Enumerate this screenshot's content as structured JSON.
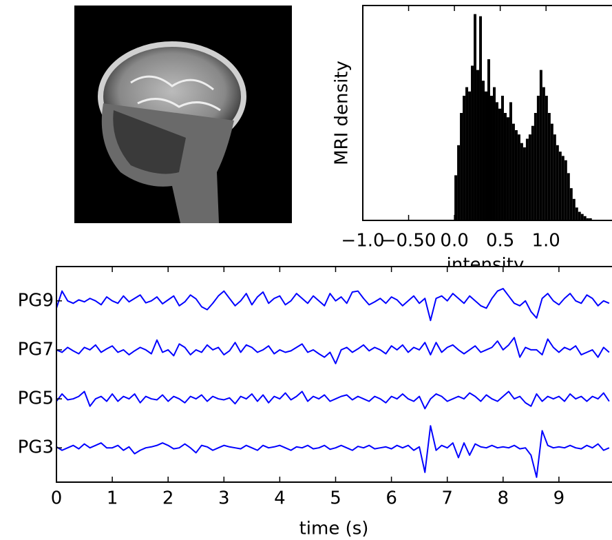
{
  "chart_data": [
    {
      "type": "histogram",
      "ylabel": "MRI density",
      "xlabel": "intensity",
      "color": "#000000",
      "bins": [
        0,
        0.03,
        0.06,
        0.09,
        0.12,
        0.15,
        0.18,
        0.21,
        0.24,
        0.27,
        0.3,
        0.33,
        0.36,
        0.39,
        0.42,
        0.45,
        0.48,
        0.51,
        0.54,
        0.57,
        0.6,
        0.63,
        0.66,
        0.69,
        0.72,
        0.75,
        0.78,
        0.81,
        0.84,
        0.87,
        0.9,
        0.93,
        0.96,
        0.99,
        1.02,
        1.05,
        1.08,
        1.11,
        1.14,
        1.17,
        1.2,
        1.23,
        1.26,
        1.29,
        1.32,
        1.35,
        1.38,
        1.41,
        1.44,
        1.47,
        1.5
      ],
      "counts": [
        21,
        35,
        50,
        58,
        62,
        60,
        72,
        96,
        70,
        95,
        65,
        60,
        75,
        58,
        62,
        55,
        52,
        58,
        50,
        48,
        55,
        45,
        42,
        40,
        36,
        34,
        38,
        40,
        44,
        50,
        58,
        70,
        62,
        58,
        50,
        45,
        40,
        35,
        32,
        30,
        28,
        22,
        15,
        10,
        6,
        4,
        3,
        2,
        1,
        1
      ],
      "xlim": [
        -1.0,
        1.75
      ],
      "ylim": [
        0,
        100
      ],
      "xticks": [
        {
          "value": -1.0,
          "label": "−1.0"
        },
        {
          "value": -0.5,
          "label": "−0.50"
        },
        {
          "value": 0.0,
          "label": "0.0"
        },
        0.5,
        {
          "value": 1.0,
          "label": "1.0"
        }
      ]
    },
    {
      "type": "line",
      "xlabel": "time (s)",
      "x": [
        0,
        0.1,
        0.2,
        0.3,
        0.4,
        0.5,
        0.6,
        0.7,
        0.8,
        0.9,
        1,
        1.1,
        1.2,
        1.3,
        1.4,
        1.5,
        1.6,
        1.7,
        1.8,
        1.9,
        2,
        2.1,
        2.2,
        2.3,
        2.4,
        2.5,
        2.6,
        2.7,
        2.8,
        2.9,
        3,
        3.1,
        3.2,
        3.3,
        3.4,
        3.5,
        3.6,
        3.7,
        3.8,
        3.9,
        4,
        4.1,
        4.2,
        4.3,
        4.4,
        4.5,
        4.6,
        4.7,
        4.8,
        4.9,
        5,
        5.1,
        5.2,
        5.3,
        5.4,
        5.5,
        5.6,
        5.7,
        5.8,
        5.9,
        6,
        6.1,
        6.2,
        6.3,
        6.4,
        6.5,
        6.6,
        6.7,
        6.8,
        6.9,
        7,
        7.1,
        7.2,
        7.3,
        7.4,
        7.5,
        7.6,
        7.7,
        7.8,
        7.9,
        8,
        8.1,
        8.2,
        8.3,
        8.4,
        8.5,
        8.6,
        8.7,
        8.8,
        8.9,
        9,
        9.1,
        9.2,
        9.3,
        9.4,
        9.5,
        9.6,
        9.7,
        9.8,
        9.9
      ],
      "series": [
        {
          "color": "#0000ff",
          "values": [
            2.85,
            3.2,
            3.0,
            2.95,
            3.02,
            2.98,
            3.05,
            3.0,
            2.92,
            3.08,
            3.0,
            2.95,
            3.1,
            2.98,
            3.05,
            3.12,
            2.96,
            3.0,
            3.08,
            2.94,
            3.02,
            3.1,
            2.9,
            2.98,
            3.12,
            3.04,
            2.88,
            2.82,
            2.95,
            3.1,
            3.2,
            3.05,
            2.9,
            3.0,
            3.15,
            2.92,
            3.08,
            3.18,
            2.95,
            3.05,
            3.1,
            2.92,
            3.0,
            3.15,
            3.05,
            2.95,
            3.1,
            3.0,
            2.9,
            3.15,
            3.0,
            3.08,
            2.95,
            3.18,
            3.2,
            3.05,
            2.92,
            2.98,
            3.05,
            2.95,
            3.08,
            3.02,
            2.9,
            3.0,
            3.1,
            2.95,
            3.05,
            2.6,
            3.05,
            3.1,
            3.0,
            3.15,
            3.05,
            2.95,
            3.1,
            3.0,
            2.9,
            2.85,
            3.05,
            3.2,
            3.25,
            3.1,
            2.95,
            2.9,
            3.0,
            2.78,
            2.65,
            3.05,
            3.15,
            3.0,
            2.92,
            3.05,
            3.15,
            3.0,
            2.95,
            3.12,
            3.05,
            2.9,
            3.0,
            2.95
          ]
        },
        {
          "color": "#0000ff",
          "values": [
            2.0,
            1.95,
            2.05,
            1.98,
            1.92,
            2.05,
            2.0,
            2.1,
            1.95,
            2.02,
            2.08,
            1.95,
            2.0,
            1.9,
            1.98,
            2.05,
            2.0,
            1.92,
            2.2,
            1.95,
            2.0,
            1.88,
            2.12,
            2.05,
            1.9,
            2.0,
            1.95,
            2.1,
            2.0,
            2.05,
            1.9,
            1.98,
            2.15,
            1.95,
            2.1,
            2.05,
            1.95,
            2.0,
            2.08,
            1.92,
            2.0,
            1.95,
            1.98,
            2.05,
            2.12,
            1.95,
            2.0,
            1.92,
            1.85,
            1.95,
            1.72,
            2.0,
            2.05,
            1.95,
            2.02,
            2.1,
            1.98,
            2.05,
            2.0,
            1.92,
            2.08,
            2.0,
            2.1,
            1.95,
            2.05,
            2.0,
            2.15,
            1.9,
            2.15,
            1.95,
            2.05,
            2.1,
            2.0,
            1.92,
            2.0,
            2.08,
            1.95,
            2.0,
            2.05,
            2.18,
            2.0,
            2.1,
            2.25,
            1.85,
            2.05,
            2.0,
            2.0,
            1.9,
            2.22,
            2.05,
            1.95,
            2.05,
            2.0,
            2.08,
            1.9,
            1.95,
            2.0,
            1.85,
            2.05,
            1.95
          ]
        },
        {
          "color": "#0000ff",
          "values": [
            0.95,
            1.1,
            0.98,
            1.0,
            1.05,
            1.15,
            0.85,
            1.0,
            1.05,
            0.95,
            1.1,
            0.95,
            1.05,
            1.0,
            1.1,
            0.92,
            1.05,
            1.0,
            0.98,
            1.08,
            0.95,
            1.05,
            1.0,
            0.92,
            1.05,
            1.0,
            1.08,
            0.95,
            1.05,
            1.0,
            0.98,
            1.02,
            0.9,
            1.05,
            1.0,
            1.1,
            0.95,
            1.08,
            0.92,
            1.05,
            1.0,
            1.12,
            0.98,
            1.05,
            1.15,
            0.95,
            1.05,
            1.0,
            1.08,
            0.95,
            1.0,
            1.05,
            1.08,
            0.98,
            1.05,
            1.0,
            0.95,
            1.05,
            1.0,
            0.92,
            1.05,
            1.0,
            1.1,
            1.0,
            0.95,
            1.05,
            0.8,
            1.0,
            1.1,
            1.05,
            0.95,
            1.0,
            1.05,
            1.0,
            1.12,
            1.05,
            0.95,
            1.08,
            1.0,
            0.95,
            1.05,
            1.15,
            1.0,
            1.05,
            0.92,
            0.85,
            1.1,
            0.95,
            1.05,
            1.0,
            1.05,
            0.95,
            1.1,
            1.0,
            1.05,
            0.95,
            1.05,
            1.0,
            1.12,
            0.95
          ]
        },
        {
          "color": "#0000ff",
          "values": [
            0.02,
            -0.05,
            0.0,
            0.05,
            -0.02,
            0.08,
            0.0,
            0.05,
            0.1,
            0.0,
            0.0,
            0.05,
            -0.05,
            0.02,
            -0.12,
            -0.05,
            0.0,
            0.02,
            0.05,
            0.1,
            0.05,
            -0.02,
            0.0,
            0.08,
            0.0,
            -0.1,
            0.05,
            0.02,
            -0.05,
            0.0,
            0.05,
            0.02,
            0.0,
            -0.02,
            0.05,
            0.0,
            -0.05,
            0.05,
            0.0,
            0.02,
            0.05,
            0.0,
            -0.05,
            0.02,
            0.0,
            0.05,
            -0.02,
            0.0,
            0.05,
            -0.03,
            0.0,
            0.05,
            0.0,
            -0.05,
            0.03,
            0.0,
            0.05,
            -0.02,
            0.0,
            0.02,
            -0.02,
            0.05,
            0.0,
            0.05,
            -0.05,
            0.02,
            -0.5,
            0.45,
            -0.05,
            0.05,
            0.0,
            0.1,
            -0.2,
            0.1,
            -0.15,
            0.08,
            0.02,
            0.0,
            0.05,
            0.0,
            0.02,
            0.0,
            0.05,
            -0.02,
            0.0,
            -0.15,
            -0.6,
            0.35,
            0.05,
            0.0,
            0.02,
            0.0,
            0.05,
            0.0,
            -0.02,
            0.05,
            0.0,
            0.08,
            -0.05,
            0.0
          ]
        }
      ],
      "xlim": [
        0,
        10
      ],
      "ylim": [
        -0.7,
        3.7
      ],
      "xticks": [
        0,
        1,
        2,
        3,
        4,
        5,
        6,
        7,
        8,
        9
      ],
      "yticks": [
        {
          "value": 3,
          "label": "PG9"
        },
        {
          "value": 2,
          "label": "PG7"
        },
        {
          "value": 1,
          "label": "PG5"
        },
        {
          "value": 0,
          "label": "PG3"
        }
      ]
    }
  ]
}
